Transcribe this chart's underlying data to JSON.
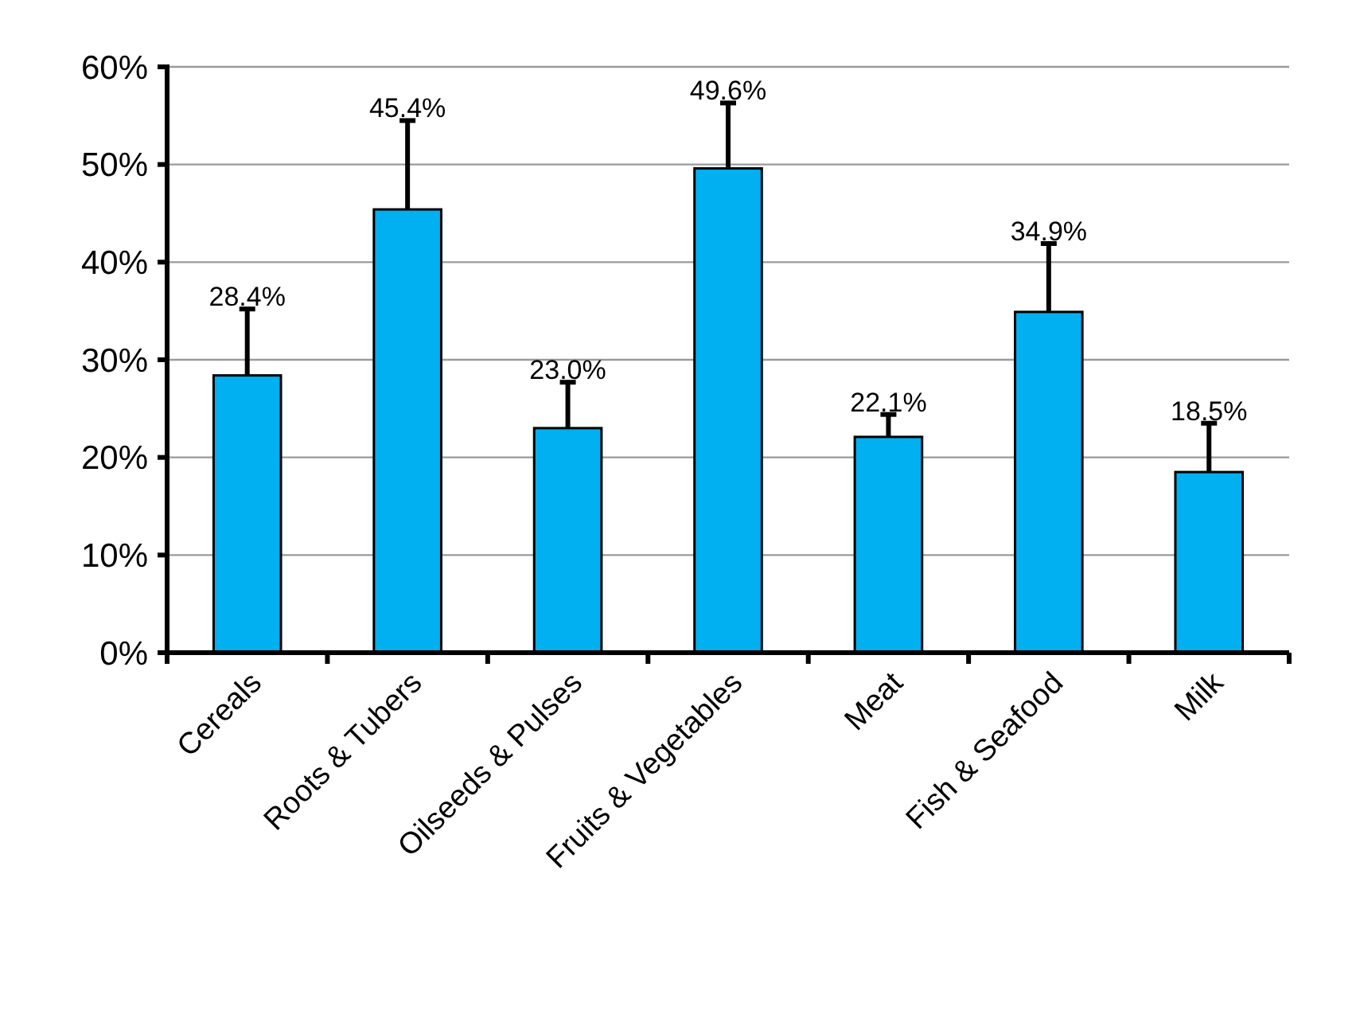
{
  "chart_data": {
    "type": "bar",
    "categories": [
      "Cereals",
      "Roots & Tubers",
      "Oilseeds & Pulses",
      "Fruits & Vegetables",
      "Meat",
      "Fish & Seafood",
      "Milk"
    ],
    "values": [
      28.4,
      45.4,
      23.0,
      49.6,
      22.1,
      34.9,
      18.5
    ],
    "value_labels": [
      "28.4%",
      "45.4%",
      "23.0%",
      "49.6%",
      "22.1%",
      "34.9%",
      "18.5%"
    ],
    "errors": [
      [
        28.4,
        35.2
      ],
      [
        45.4,
        54.5
      ],
      [
        23.0,
        27.7
      ],
      [
        49.6,
        56.3
      ],
      [
        22.1,
        24.4
      ],
      [
        34.9,
        41.9
      ],
      [
        18.5,
        23.5
      ]
    ],
    "color": "#00b0f0",
    "ylim": [
      0,
      60
    ],
    "yticks": [
      {
        "value": 0,
        "label": "0%"
      },
      {
        "value": 10,
        "label": "10%"
      },
      {
        "value": 20,
        "label": "20%"
      },
      {
        "value": 30,
        "label": "30%"
      },
      {
        "value": 40,
        "label": "40%"
      },
      {
        "value": 50,
        "label": "50%"
      },
      {
        "value": 60,
        "label": "60%"
      }
    ],
    "grid": "y"
  }
}
